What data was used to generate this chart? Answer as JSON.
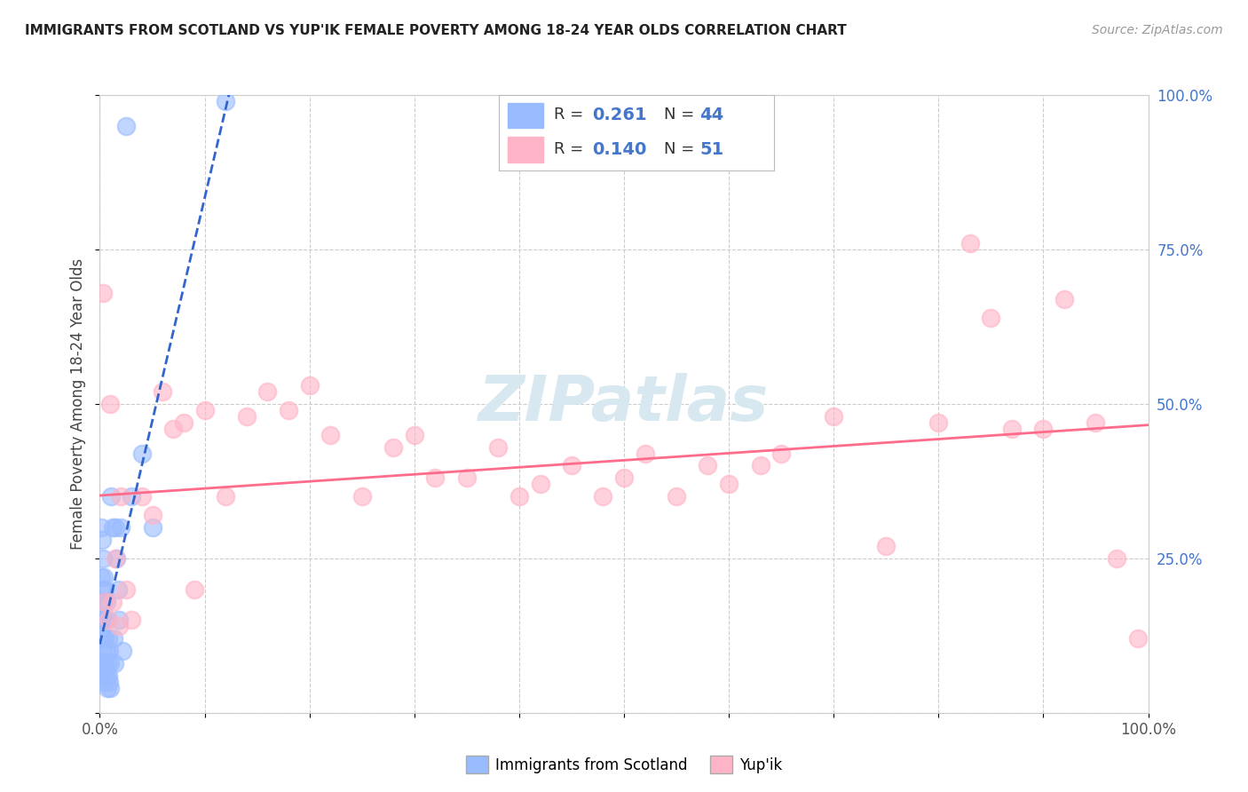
{
  "title": "IMMIGRANTS FROM SCOTLAND VS YUP'IK FEMALE POVERTY AMONG 18-24 YEAR OLDS CORRELATION CHART",
  "source": "Source: ZipAtlas.com",
  "ylabel": "Female Poverty Among 18-24 Year Olds",
  "legend_blue_label": "Immigrants from Scotland",
  "legend_pink_label": "Yup'ik",
  "R_blue": 0.261,
  "N_blue": 44,
  "R_pink": 0.14,
  "N_pink": 51,
  "blue_color": "#99BBFF",
  "pink_color": "#FFB3C6",
  "trend_blue_color": "#3366CC",
  "trend_pink_color": "#FF6B8A",
  "ytick_color": "#4477CC",
  "watermark_color": "#D8E8F0",
  "blue_scatter_x": [
    0.001,
    0.001,
    0.001,
    0.002,
    0.002,
    0.002,
    0.003,
    0.003,
    0.003,
    0.003,
    0.004,
    0.004,
    0.004,
    0.004,
    0.005,
    0.005,
    0.005,
    0.006,
    0.006,
    0.006,
    0.007,
    0.007,
    0.007,
    0.008,
    0.008,
    0.009,
    0.009,
    0.01,
    0.01,
    0.011,
    0.012,
    0.013,
    0.014,
    0.015,
    0.016,
    0.017,
    0.018,
    0.02,
    0.022,
    0.025,
    0.03,
    0.04,
    0.05,
    0.12
  ],
  "blue_scatter_y": [
    0.3,
    0.22,
    0.15,
    0.28,
    0.2,
    0.12,
    0.25,
    0.18,
    0.1,
    0.08,
    0.22,
    0.15,
    0.08,
    0.05,
    0.2,
    0.12,
    0.07,
    0.18,
    0.1,
    0.06,
    0.15,
    0.08,
    0.04,
    0.12,
    0.06,
    0.1,
    0.05,
    0.08,
    0.04,
    0.35,
    0.3,
    0.12,
    0.08,
    0.3,
    0.25,
    0.2,
    0.15,
    0.3,
    0.1,
    0.95,
    0.35,
    0.42,
    0.3,
    0.99
  ],
  "pink_scatter_x": [
    0.003,
    0.005,
    0.008,
    0.01,
    0.012,
    0.015,
    0.018,
    0.02,
    0.025,
    0.03,
    0.04,
    0.05,
    0.06,
    0.07,
    0.08,
    0.09,
    0.1,
    0.12,
    0.14,
    0.16,
    0.18,
    0.2,
    0.22,
    0.25,
    0.28,
    0.3,
    0.32,
    0.35,
    0.38,
    0.4,
    0.42,
    0.45,
    0.48,
    0.5,
    0.52,
    0.55,
    0.58,
    0.6,
    0.63,
    0.65,
    0.7,
    0.75,
    0.8,
    0.83,
    0.85,
    0.87,
    0.9,
    0.92,
    0.95,
    0.97,
    0.99
  ],
  "pink_scatter_y": [
    0.68,
    0.18,
    0.15,
    0.5,
    0.18,
    0.25,
    0.14,
    0.35,
    0.2,
    0.15,
    0.35,
    0.32,
    0.52,
    0.46,
    0.47,
    0.2,
    0.49,
    0.35,
    0.48,
    0.52,
    0.49,
    0.53,
    0.45,
    0.35,
    0.43,
    0.45,
    0.38,
    0.38,
    0.43,
    0.35,
    0.37,
    0.4,
    0.35,
    0.38,
    0.42,
    0.35,
    0.4,
    0.37,
    0.4,
    0.42,
    0.48,
    0.27,
    0.47,
    0.76,
    0.64,
    0.46,
    0.46,
    0.67,
    0.47,
    0.25,
    0.12
  ]
}
